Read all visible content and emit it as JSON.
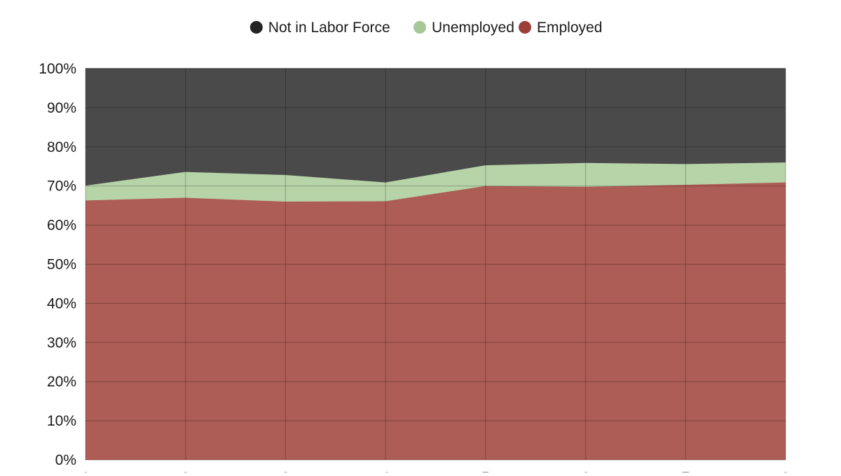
{
  "chart_data": {
    "type": "area",
    "stacked": true,
    "normalized_percent": true,
    "x": [
      "1",
      "2",
      "3",
      "4",
      "5",
      "6",
      "7",
      "8"
    ],
    "ylim": [
      0,
      100
    ],
    "y_ticks": [
      "0%",
      "10%",
      "20%",
      "30%",
      "40%",
      "50%",
      "60%",
      "70%",
      "80%",
      "90%",
      "100%"
    ],
    "grid": true,
    "legend_position": "top",
    "series": [
      {
        "name": "Employed",
        "color": "#ad5d55",
        "values": [
          66.3,
          67.0,
          66.0,
          66.1,
          70.0,
          69.8,
          70.3,
          70.9
        ]
      },
      {
        "name": "Unemployed",
        "color": "#b7d3a8",
        "values": [
          3.8,
          6.6,
          6.8,
          4.8,
          5.3,
          6.1,
          5.3,
          5.1
        ]
      },
      {
        "name": "Not in Labor Force",
        "color": "#4a4a4a",
        "values": [
          29.9,
          26.4,
          27.2,
          29.1,
          24.7,
          24.1,
          24.4,
          24.0
        ]
      }
    ],
    "legend": [
      {
        "label": "Not in Labor Force",
        "color": "#222222"
      },
      {
        "label": "Unemployed",
        "color": "#a7c796"
      },
      {
        "label": "Employed",
        "color": "#9c3f38"
      }
    ]
  }
}
